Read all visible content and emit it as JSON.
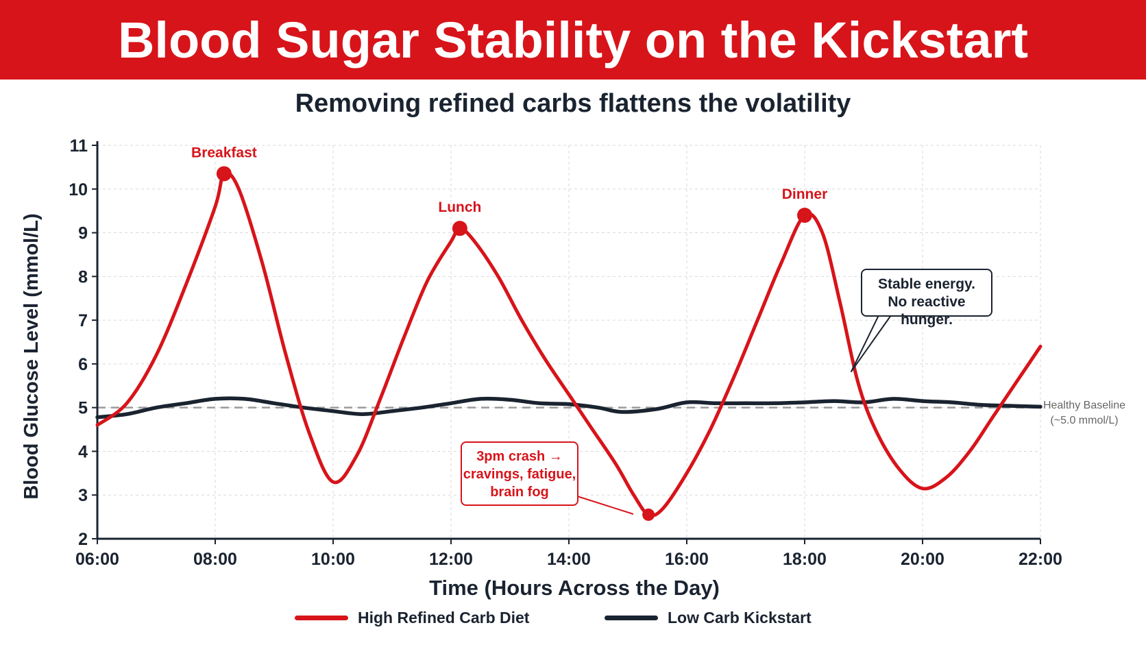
{
  "header": {
    "title": "Blood Sugar Stability on the Kickstart",
    "subtitle": "Removing refined carbs flattens the volatility"
  },
  "colors": {
    "banner": "#d7141a",
    "high_carb": "#d7141a",
    "low_carb": "#1a2330",
    "baseline": "#9a9a9a",
    "grid": "#d9d9d9"
  },
  "annotations": {
    "stable_line1": "Stable energy.",
    "stable_line2": "No reactive hunger.",
    "crash_line1": "3pm crash →",
    "crash_line2": "cravings, fatigue,",
    "crash_line3": "brain fog",
    "baseline_line1": "Healthy Baseline",
    "baseline_line2": "(~5.0 mmol/L)"
  },
  "legend": {
    "high_carb": "High Refined Carb Diet",
    "low_carb": "Low Carb Kickstart"
  },
  "chart_data": {
    "type": "line",
    "xlabel": "Time (Hours Across the Day)",
    "ylabel": "Blood Glucose Level (mmol/L)",
    "xlim": [
      6,
      22
    ],
    "ylim": [
      2,
      11
    ],
    "x_ticks": [
      6,
      8,
      10,
      12,
      14,
      16,
      18,
      20,
      22
    ],
    "x_tick_labels": [
      "06:00",
      "08:00",
      "10:00",
      "12:00",
      "14:00",
      "16:00",
      "18:00",
      "20:00",
      "22:00"
    ],
    "y_ticks": [
      2,
      3,
      4,
      5,
      6,
      7,
      8,
      9,
      10,
      11
    ],
    "grid": true,
    "legend_position": "bottom",
    "baseline": 5.0,
    "series": [
      {
        "name": "High Refined Carb Diet",
        "color": "#d7141a",
        "points": [
          [
            6.0,
            4.6
          ],
          [
            6.5,
            5.1
          ],
          [
            7.0,
            6.2
          ],
          [
            7.5,
            7.8
          ],
          [
            8.0,
            9.6
          ],
          [
            8.15,
            10.35
          ],
          [
            8.4,
            10.0
          ],
          [
            8.8,
            8.3
          ],
          [
            9.2,
            6.2
          ],
          [
            9.6,
            4.4
          ],
          [
            10.0,
            3.3
          ],
          [
            10.4,
            3.9
          ],
          [
            10.8,
            5.2
          ],
          [
            11.2,
            6.6
          ],
          [
            11.6,
            7.9
          ],
          [
            12.0,
            8.8
          ],
          [
            12.15,
            9.1
          ],
          [
            12.4,
            8.8
          ],
          [
            12.8,
            8.0
          ],
          [
            13.2,
            7.0
          ],
          [
            13.6,
            6.1
          ],
          [
            14.0,
            5.3
          ],
          [
            14.4,
            4.5
          ],
          [
            14.8,
            3.7
          ],
          [
            15.1,
            3.0
          ],
          [
            15.35,
            2.55
          ],
          [
            15.6,
            2.7
          ],
          [
            16.0,
            3.5
          ],
          [
            16.4,
            4.5
          ],
          [
            16.8,
            5.7
          ],
          [
            17.2,
            7.0
          ],
          [
            17.6,
            8.3
          ],
          [
            18.0,
            9.4
          ],
          [
            18.3,
            9.0
          ],
          [
            18.6,
            7.4
          ],
          [
            18.9,
            5.6
          ],
          [
            19.2,
            4.5
          ],
          [
            19.6,
            3.6
          ],
          [
            20.0,
            3.15
          ],
          [
            20.4,
            3.4
          ],
          [
            20.8,
            4.0
          ],
          [
            21.2,
            4.8
          ],
          [
            21.6,
            5.6
          ],
          [
            22.0,
            6.4
          ]
        ],
        "labeled_points": [
          {
            "x": 8.15,
            "y": 10.35,
            "label": "Breakfast"
          },
          {
            "x": 12.15,
            "y": 9.1,
            "label": "Lunch"
          },
          {
            "x": 18.0,
            "y": 9.4,
            "label": "Dinner"
          },
          {
            "x": 15.35,
            "y": 2.55,
            "label": ""
          }
        ]
      },
      {
        "name": "Low Carb Kickstart",
        "color": "#1a2330",
        "points": [
          [
            6.0,
            4.78
          ],
          [
            6.5,
            4.85
          ],
          [
            7.0,
            5.0
          ],
          [
            7.5,
            5.1
          ],
          [
            8.0,
            5.2
          ],
          [
            8.5,
            5.2
          ],
          [
            9.0,
            5.1
          ],
          [
            9.5,
            5.0
          ],
          [
            10.0,
            4.92
          ],
          [
            10.5,
            4.85
          ],
          [
            11.0,
            4.92
          ],
          [
            11.5,
            5.0
          ],
          [
            12.0,
            5.1
          ],
          [
            12.5,
            5.2
          ],
          [
            13.0,
            5.18
          ],
          [
            13.5,
            5.1
          ],
          [
            14.0,
            5.08
          ],
          [
            14.5,
            5.0
          ],
          [
            14.9,
            4.9
          ],
          [
            15.5,
            4.97
          ],
          [
            16.0,
            5.12
          ],
          [
            16.5,
            5.1
          ],
          [
            17.0,
            5.1
          ],
          [
            17.5,
            5.1
          ],
          [
            18.0,
            5.12
          ],
          [
            18.5,
            5.15
          ],
          [
            19.0,
            5.12
          ],
          [
            19.5,
            5.2
          ],
          [
            20.0,
            5.15
          ],
          [
            20.5,
            5.12
          ],
          [
            21.0,
            5.06
          ],
          [
            21.5,
            5.04
          ],
          [
            22.0,
            5.02
          ]
        ]
      }
    ]
  }
}
